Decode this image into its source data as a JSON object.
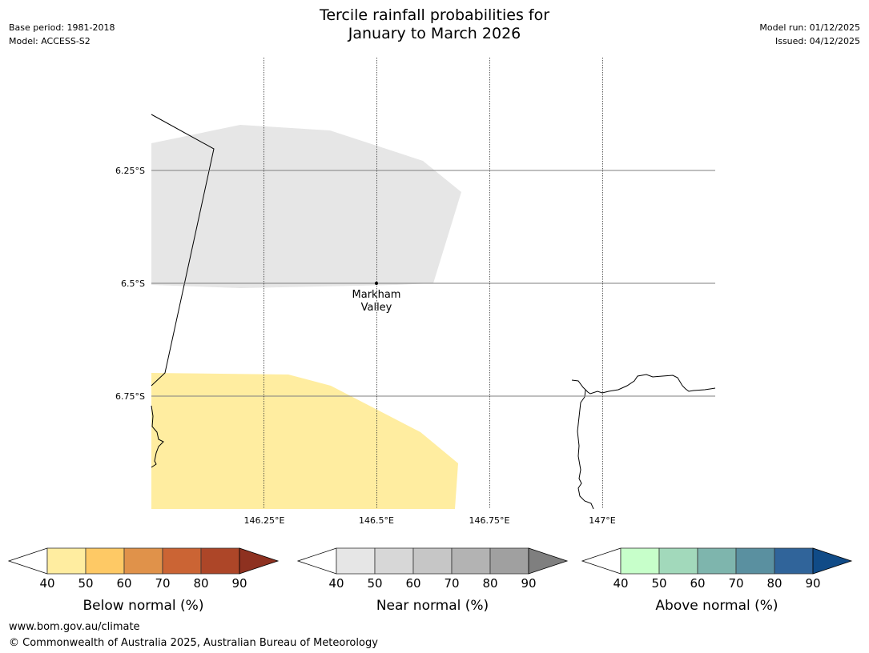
{
  "header": {
    "title_line1": "Tercile rainfall probabilities for",
    "title_line2": "January to March 2026",
    "base_period": "Base period: 1981-2018",
    "model": "Model: ACCESS-S2",
    "model_run": "Model run: 01/12/2025",
    "issued": "Issued: 04/12/2025"
  },
  "map": {
    "lat_labels": [
      "6.25°S",
      "6.5°S",
      "6.75°S"
    ],
    "lon_labels": [
      "146.25°E",
      "146.5°E",
      "146.75°E",
      "147°E"
    ],
    "place": {
      "name_line1": "Markham",
      "name_line2": "Valley"
    },
    "regions": [
      {
        "category": "near normal",
        "probability_band": "40-50",
        "color": "#e6e6e6"
      },
      {
        "category": "below normal",
        "probability_band": "40-50",
        "color": "#ffeda0"
      }
    ]
  },
  "colorbars": [
    {
      "label": "Below normal (%)",
      "ticks": [
        "40",
        "50",
        "60",
        "70",
        "80",
        "90"
      ],
      "colors": [
        "#ffeda0",
        "#fec965",
        "#e0924a",
        "#cb6434",
        "#ad4628",
        "#8e3120"
      ]
    },
    {
      "label": "Near normal (%)",
      "ticks": [
        "40",
        "50",
        "60",
        "70",
        "80",
        "90"
      ],
      "colors": [
        "#e6e6e6",
        "#d7d7d7",
        "#c6c6c6",
        "#b3b3b3",
        "#a0a0a0",
        "#7f7f7f"
      ]
    },
    {
      "label": "Above normal (%)",
      "ticks": [
        "40",
        "50",
        "60",
        "70",
        "80",
        "90"
      ],
      "colors": [
        "#c7ffca",
        "#a2d9bb",
        "#7eb5ad",
        "#5a90a0",
        "#30649a",
        "#104b87"
      ]
    }
  ],
  "footer": {
    "url": "www.bom.gov.au/climate",
    "copyright": "© Commonwealth of Australia 2025, Australian Bureau of Meteorology"
  }
}
